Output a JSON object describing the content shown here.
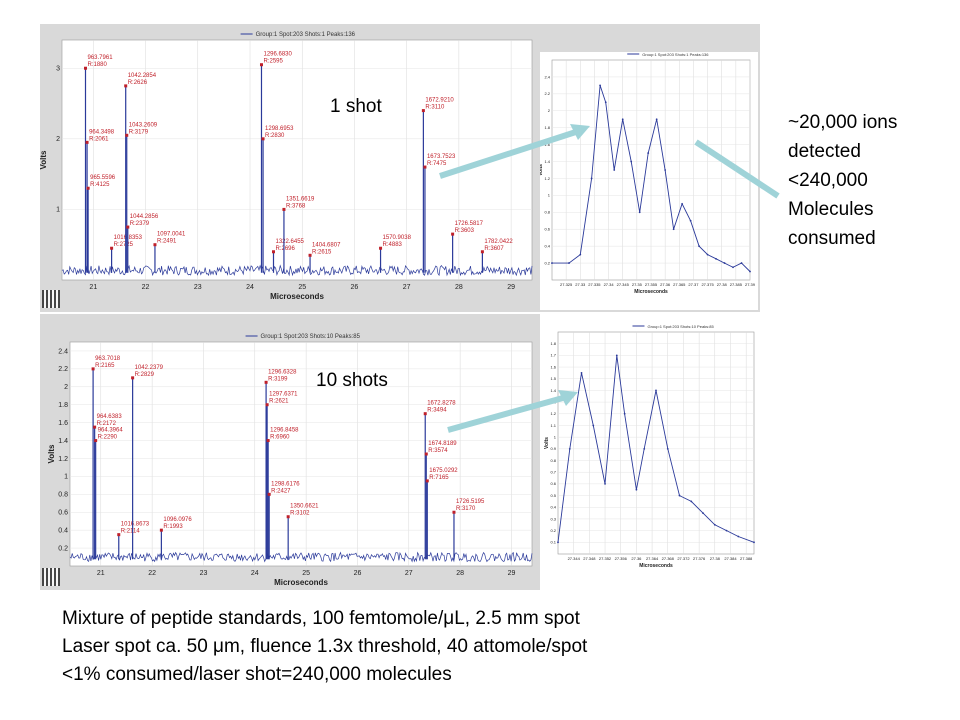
{
  "labels": {
    "one_shot": "1 shot",
    "ten_shots": "10 shots"
  },
  "side_text": [
    "~20,000 ions",
    "detected",
    "<240,000",
    "Molecules",
    "consumed"
  ],
  "caption": [
    "Mixture of peptide standards, 100 femtomole/μL, 2.5 mm spot",
    "Laser spot ca. 50 μm, fluence 1.3x threshold, 40 attomole/spot",
    "<1% consumed/laser shot=240,000 molecules"
  ],
  "colors": {
    "trace": "#2b3a9a",
    "peak_marker": "#c0202a",
    "label": "#c0202a",
    "arrow": "#9fd3d8",
    "panel_bg": "#d9d9d9"
  },
  "chart_data": [
    {
      "type": "line",
      "title": "Group:1 Spot:203 Shots:1 Peaks:136",
      "legend": "Group:1 Spot:203 Shots:1 Peaks:136",
      "xlabel": "Microseconds",
      "ylabel": "Volts",
      "xlim": [
        20.4,
        29.4
      ],
      "ylim": [
        0,
        3.4
      ],
      "xticks": [
        "21",
        "22",
        "23",
        "24",
        "25",
        "26",
        "27",
        "28",
        "29"
      ],
      "yticks": [
        "1",
        "2",
        "3"
      ],
      "peaks": [
        {
          "x": 20.85,
          "y": 3.0,
          "label": [
            "963.7961",
            "R:1880"
          ]
        },
        {
          "x": 20.88,
          "y": 1.95,
          "label": [
            "964.3498",
            "R:2061"
          ]
        },
        {
          "x": 20.9,
          "y": 1.3,
          "label": [
            "965.5596",
            "R:4125"
          ]
        },
        {
          "x": 21.35,
          "y": 0.45,
          "label": [
            "1016.8353",
            "R:2725"
          ]
        },
        {
          "x": 21.62,
          "y": 2.75,
          "label": [
            "1042.2854",
            "R:2626"
          ]
        },
        {
          "x": 21.64,
          "y": 2.05,
          "label": [
            "1043.2609",
            "R:3179"
          ]
        },
        {
          "x": 21.66,
          "y": 0.75,
          "label": [
            "1044.2856",
            "R:2379"
          ]
        },
        {
          "x": 22.18,
          "y": 0.5,
          "label": [
            "1097.0041",
            "R:2491"
          ]
        },
        {
          "x": 24.22,
          "y": 3.05,
          "label": [
            "1296.6830",
            "R:2595"
          ]
        },
        {
          "x": 24.25,
          "y": 2.0,
          "label": [
            "1298.6953",
            "R:2830"
          ]
        },
        {
          "x": 24.45,
          "y": 0.4,
          "label": [
            "1322.6455",
            "R:2696"
          ]
        },
        {
          "x": 24.65,
          "y": 1.0,
          "label": [
            "1351.6619",
            "R:3768"
          ]
        },
        {
          "x": 25.15,
          "y": 0.35,
          "label": [
            "1404.6807",
            "R:2615"
          ]
        },
        {
          "x": 26.5,
          "y": 0.45,
          "label": [
            "1570.9038",
            "R:4883"
          ]
        },
        {
          "x": 27.32,
          "y": 2.4,
          "label": [
            "1672.9210",
            "R:3110"
          ]
        },
        {
          "x": 27.35,
          "y": 1.6,
          "label": [
            "1673.7523",
            "R:7475"
          ]
        },
        {
          "x": 27.88,
          "y": 0.65,
          "label": [
            "1726.5817",
            "R:3603"
          ]
        },
        {
          "x": 28.45,
          "y": 0.4,
          "label": [
            "1782.0422",
            "R:3607"
          ]
        }
      ]
    },
    {
      "type": "line",
      "title": "Group:1 Spot:203 Shots:10 Peaks:85",
      "legend": "Group:1 Spot:203 Shots:10 Peaks:85",
      "xlabel": "Microseconds",
      "ylabel": "Volts",
      "xlim": [
        20.4,
        29.4
      ],
      "ylim": [
        0,
        2.5
      ],
      "xticks": [
        "21",
        "22",
        "23",
        "24",
        "25",
        "26",
        "27",
        "28",
        "29"
      ],
      "yticks": [
        "0.2",
        "0.4",
        "0.6",
        "0.8",
        "1",
        "1.2",
        "1.4",
        "1.6",
        "1.8",
        "2",
        "2.2",
        "2.4"
      ],
      "peaks": [
        {
          "x": 20.85,
          "y": 2.2,
          "label": [
            "963.7018",
            "R:2165"
          ]
        },
        {
          "x": 20.88,
          "y": 1.55,
          "label": [
            "964.6383",
            "R:2172"
          ]
        },
        {
          "x": 20.9,
          "y": 1.4,
          "label": [
            "964.3964",
            "R:2290"
          ]
        },
        {
          "x": 21.35,
          "y": 0.35,
          "label": [
            "1016.8673",
            "R:2114"
          ]
        },
        {
          "x": 21.62,
          "y": 2.1,
          "label": [
            "1042.2379",
            "R:2829"
          ]
        },
        {
          "x": 22.18,
          "y": 0.4,
          "label": [
            "1096.0976",
            "R:1993"
          ]
        },
        {
          "x": 24.22,
          "y": 2.05,
          "label": [
            "1296.6328",
            "R:3199"
          ]
        },
        {
          "x": 24.24,
          "y": 1.8,
          "label": [
            "1297.6371",
            "R:2621"
          ]
        },
        {
          "x": 24.26,
          "y": 1.4,
          "label": [
            "1296.8458",
            "R:6960"
          ]
        },
        {
          "x": 24.28,
          "y": 0.8,
          "label": [
            "1298.6176",
            "R:2427"
          ]
        },
        {
          "x": 24.65,
          "y": 0.55,
          "label": [
            "1350.6621",
            "R:3102"
          ]
        },
        {
          "x": 27.32,
          "y": 1.7,
          "label": [
            "1672.8278",
            "R:3494"
          ]
        },
        {
          "x": 27.34,
          "y": 1.25,
          "label": [
            "1674.8189",
            "R:3574"
          ]
        },
        {
          "x": 27.36,
          "y": 0.95,
          "label": [
            "1675.0292",
            "R:7165"
          ]
        },
        {
          "x": 27.88,
          "y": 0.6,
          "label": [
            "1726.5195",
            "R:3170"
          ]
        }
      ]
    },
    {
      "type": "line",
      "title": "Group:1 Spot:203 Shots:1 Peaks:136",
      "legend": "Group:1 Spot:203 Shots:1 Peaks:136",
      "xlabel": "Microseconds",
      "ylabel": "Volts",
      "xlim": [
        27.32,
        27.39
      ],
      "ylim": [
        0,
        2.6
      ],
      "xticks": [
        "27.325",
        "27.33",
        "27.335",
        "27.34",
        "27.345",
        "27.35",
        "27.355",
        "27.36",
        "27.365",
        "27.37",
        "27.375",
        "27.38",
        "27.385",
        "27.39"
      ],
      "yticks": [
        "0.2",
        "0.4",
        "0.6",
        "0.8",
        "1",
        "1.2",
        "1.4",
        "1.6",
        "1.8",
        "2",
        "2.2",
        "2.4"
      ],
      "series": [
        {
          "x": [
            27.32,
            27.326,
            27.33,
            27.334,
            27.337,
            27.339,
            27.342,
            27.345,
            27.348,
            27.351,
            27.354,
            27.357,
            27.36,
            27.363,
            27.366,
            27.369,
            27.372,
            27.375,
            27.378,
            27.381,
            27.384,
            27.387,
            27.39
          ],
          "y": [
            0.2,
            0.2,
            0.3,
            1.2,
            2.3,
            2.1,
            1.3,
            1.9,
            1.4,
            0.8,
            1.5,
            1.9,
            1.3,
            0.6,
            0.9,
            0.7,
            0.4,
            0.3,
            0.25,
            0.2,
            0.15,
            0.2,
            0.1
          ]
        }
      ]
    },
    {
      "type": "line",
      "title": "Group:1 Spot:203 Shots:10 Peaks:85",
      "legend": "Group:1 Spot:203 Shots:10 Peaks:85",
      "xlabel": "Microseconds",
      "ylabel": "Volts",
      "xlim": [
        27.34,
        27.39
      ],
      "ylim": [
        0,
        1.9
      ],
      "xticks": [
        "27.344",
        "27.348",
        "27.352",
        "27.356",
        "27.36",
        "27.364",
        "27.368",
        "27.372",
        "27.376",
        "27.38",
        "27.384",
        "27.388"
      ],
      "yticks": [
        "0.1",
        "0.2",
        "0.3",
        "0.4",
        "0.5",
        "0.6",
        "0.7",
        "0.8",
        "0.9",
        "1",
        "1.1",
        "1.2",
        "1.3",
        "1.4",
        "1.5",
        "1.6",
        "1.7",
        "1.8"
      ],
      "series": [
        {
          "x": [
            27.34,
            27.343,
            27.346,
            27.349,
            27.352,
            27.355,
            27.357,
            27.36,
            27.362,
            27.365,
            27.368,
            27.371,
            27.374,
            27.377,
            27.38,
            27.383,
            27.386,
            27.39
          ],
          "y": [
            0.1,
            0.9,
            1.55,
            1.1,
            0.6,
            1.7,
            1.2,
            0.55,
            0.9,
            1.4,
            0.9,
            0.5,
            0.45,
            0.35,
            0.25,
            0.2,
            0.15,
            0.1
          ]
        }
      ]
    }
  ]
}
